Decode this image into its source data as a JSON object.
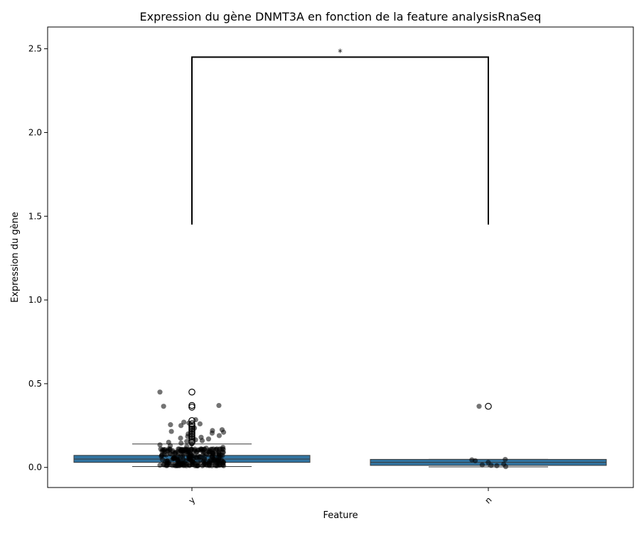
{
  "chart_data": {
    "type": "box",
    "title": "Expression du gène DNMT3A en fonction de la feature analysisRnaSeq",
    "xlabel": "Feature",
    "ylabel": "Expression du gène",
    "categories": [
      "y",
      "n"
    ],
    "ylim": [
      -0.12,
      2.63
    ],
    "yticks": [
      0.0,
      0.5,
      1.0,
      1.5,
      2.0,
      2.5
    ],
    "ytick_labels": [
      "0.0",
      "0.5",
      "1.0",
      "1.5",
      "2.0",
      "2.5"
    ],
    "boxes": [
      {
        "category": "y",
        "whisker_low": 0.005,
        "q1": 0.03,
        "median": 0.05,
        "q3": 0.072,
        "whisker_high": 0.14,
        "outliers": [
          0.15,
          0.16,
          0.17,
          0.18,
          0.19,
          0.2,
          0.21,
          0.22,
          0.23,
          0.24,
          0.25,
          0.26,
          0.28,
          0.36,
          0.37,
          0.45
        ]
      },
      {
        "category": "n",
        "whisker_low": 0.003,
        "q1": 0.012,
        "median": 0.03,
        "q3": 0.048,
        "whisker_high": 0.048,
        "outliers": [
          0.365
        ]
      }
    ],
    "strip_points": {
      "y": [
        0.45,
        0.37,
        0.365,
        0.285,
        0.27,
        0.265,
        0.26,
        0.255,
        0.25,
        0.235,
        0.225,
        0.22,
        0.215,
        0.21,
        0.205,
        0.2,
        0.19,
        0.185,
        0.18,
        0.175,
        0.17,
        0.165,
        0.16,
        0.155,
        0.15,
        0.145,
        0.14,
        0.135,
        0.13,
        0.125,
        0.12,
        0.115,
        0.11,
        0.105,
        0.1,
        0.095,
        0.09,
        0.085,
        0.08,
        0.075,
        0.07,
        0.065,
        0.06,
        0.055,
        0.05,
        0.045,
        0.04,
        0.035,
        0.03,
        0.025,
        0.02,
        0.015,
        0.01
      ],
      "n": [
        0.365,
        0.048,
        0.045,
        0.04,
        0.03,
        0.02,
        0.015,
        0.012,
        0.01,
        0.005
      ]
    },
    "annotation": {
      "text": "*",
      "between": [
        "y",
        "n"
      ],
      "y_top": 2.45,
      "y_bottom": 1.45
    },
    "colors": {
      "box_fill": "#3274a1",
      "points": "#000000",
      "lines": "#000000"
    },
    "grid": false,
    "legend": "none"
  }
}
